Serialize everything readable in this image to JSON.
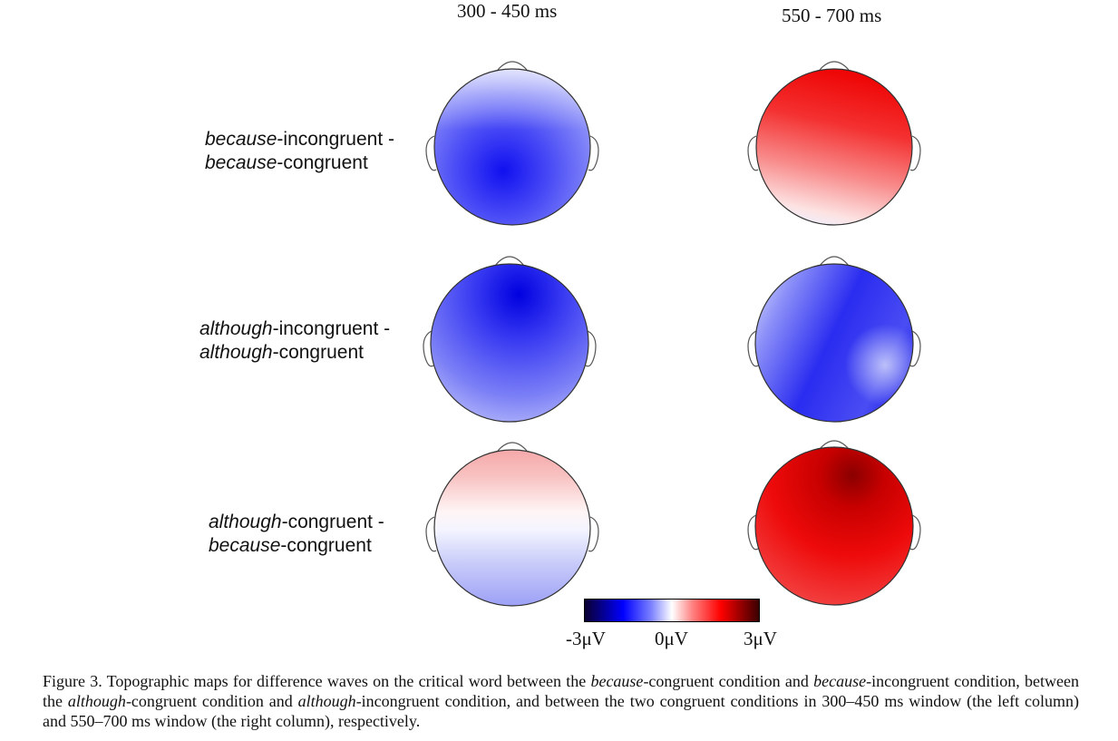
{
  "columns": [
    "300 - 450 ms",
    "550 - 700 ms"
  ],
  "rows": [
    {
      "line1_italic": "because",
      "line1_rest": "-incongruent -",
      "line2_italic": "because",
      "line2_rest": "-congruent"
    },
    {
      "line1_italic": "although",
      "line1_rest": "-incongruent -",
      "line2_italic": "although",
      "line2_rest": "-congruent"
    },
    {
      "line1_italic": "although",
      "line1_rest": "-congruent -",
      "line2_italic": "because",
      "line2_rest": "-congruent"
    }
  ],
  "colorbar": {
    "ticks": [
      "-3μV",
      "0μV",
      "3μV"
    ],
    "colors": [
      "#0a0030",
      "#0000ff",
      "#ffffff",
      "#ff0000",
      "#3a0000"
    ]
  },
  "caption": {
    "p1": "Figure 3.  Topographic maps for difference waves on the critical word between the ",
    "i1": "because",
    "p2": "-congruent condition and ",
    "i2": "because",
    "p3": "-incongruent condition, between the ",
    "i3": "although",
    "p4": "-congruent condition and ",
    "i4": "although",
    "p5": "-incongruent condition, and between the two congruent conditions in 300–450 ms window (the left column) and 550–700 ms window (the right column), respectively."
  }
}
